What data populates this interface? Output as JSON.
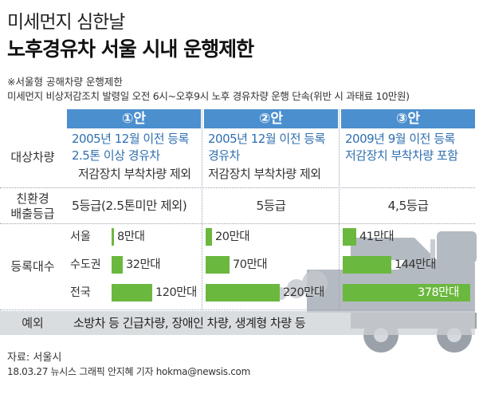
{
  "title": "미세먼지 심한날",
  "headline": "노후경유차 서울 시내 운행제한",
  "subtitle1": "※서울형 공해차량 운행제한",
  "subtitle2": "미세먼지 비상저감조치 발령일 오전 6시~오후9시 노후 경유차량 운행 단속(위반 시 과태료 10만원)",
  "columns": [
    "①안",
    "②안",
    "③안"
  ],
  "row_labels": {
    "target_line1": "대상차량",
    "grade_line1": "친환경",
    "grade_line2": "배출등급",
    "registered": "등록대수",
    "exception": "예외"
  },
  "target": [
    {
      "line1": "2005년 12월 이전 등록",
      "line2": "2.5톤 이상 경유차",
      "line3": "저감장치 부착차량 제외"
    },
    {
      "line1": "2005년 12월 이전 등록",
      "line2": "경유차",
      "line3": "저감장치 부착차량 제외"
    },
    {
      "line1": "2009년 9월 이전 등록",
      "line2": "저감장치 부착차량 포함",
      "line3": ""
    }
  ],
  "grade": [
    "5등급(2.5톤미만 제외)",
    "5등급",
    "4,5등급"
  ],
  "regions": [
    "서울",
    "수도권",
    "전국"
  ],
  "registrations": [
    {
      "seoul": "8만대",
      "metro": "32만대",
      "nation": "120만대",
      "seoul_value": 8,
      "metro_value": 32,
      "nation_value": 120
    },
    {
      "seoul": "20만대",
      "metro": "70만대",
      "nation": "220만대",
      "seoul_value": 20,
      "metro_value": 70,
      "nation_value": 220
    },
    {
      "seoul": "41만대",
      "metro": "144만대",
      "nation": "378만대",
      "seoul_value": 41,
      "metro_value": 144,
      "nation_value": 378
    }
  ],
  "exception_text": "소방차 등 긴급차량, 장애인 차량, 생계형 차량 등",
  "source": "자료: 서울시",
  "credit": "18.03.27 뉴시스 그래픽 안지혜 기자 hokma@newsis.com",
  "colors": {
    "header": "#4b8fcf",
    "bar": "#6bb83f",
    "accent_text": "#2f6fb0",
    "truck": "#aeb5bd"
  },
  "icons": {
    "background": "truck-silhouette-icon"
  }
}
